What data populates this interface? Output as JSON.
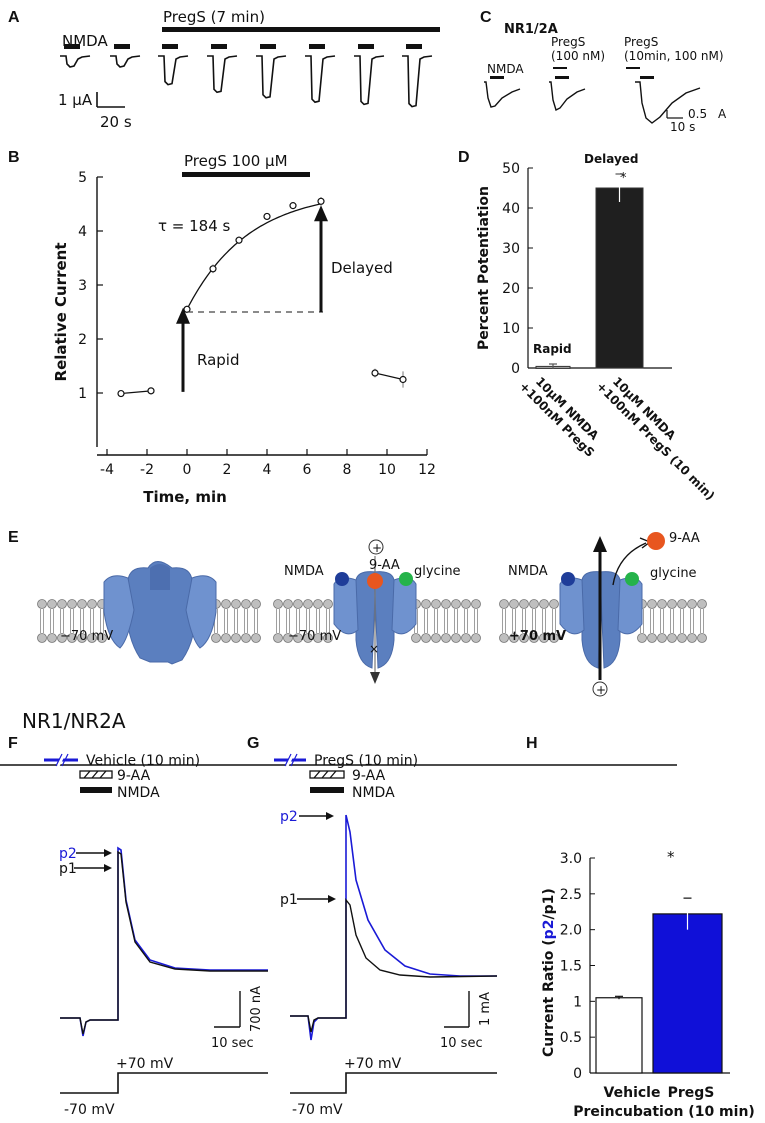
{
  "panel_labels": {
    "A": "A",
    "B": "B",
    "C": "C",
    "D": "D",
    "E": "E",
    "F": "F",
    "G": "G",
    "H": "H"
  },
  "panel_a": {
    "nmda_label": "NMDA",
    "pregs_label": "PregS (7 min)",
    "scale_y": "1 μA",
    "scale_x": "20 s",
    "relative_peaks": [
      1.0,
      1.0,
      2.6,
      3.3,
      3.8,
      4.2,
      4.4,
      4.6
    ]
  },
  "panel_c": {
    "title": "NR1/2A",
    "trace1_label": "NMDA",
    "trace2_label_line1": "PregS",
    "trace2_label_line2": "(100 nM)",
    "trace3_label_line1": "PregS",
    "trace3_label_line2": "(10min, 100 nM)",
    "scale_y": "0.5",
    "scale_unit": "A",
    "scale_x": "10 s"
  },
  "panel_e": {
    "nmda": "NMDA",
    "glycine": "glycine",
    "blocker": "9-AA",
    "v_neg1": "−70 mV",
    "v_neg2": "−70 mV",
    "v_pos": "+70 mV",
    "plus": "+"
  },
  "panel_fg": {
    "row_title": "NR1/NR2A",
    "f_vehicle": "Vehicle (10 min)",
    "g_pregs": "PregS (10 min)",
    "blocker": "9-AA",
    "nmda": "NMDA",
    "p1": "p1",
    "p2": "p2",
    "f_scale_y": "700 nA",
    "g_scale_y": "1 mA",
    "scale_x": "10 sec",
    "v_pos": "+70 mV",
    "v_neg": "-70 mV"
  },
  "colors": {
    "blue": "#1a1ad6",
    "dark": "#111111",
    "receptor": "#5b7fbf",
    "orange": "#e8561f",
    "green": "#25b34a",
    "navy": "#1f3d99"
  },
  "chart_data": [
    {
      "id": "B",
      "type": "scatter",
      "title": "PregS 100 μM",
      "xlabel": "Time, min",
      "ylabel": "Relative Current",
      "xlim": [
        -4.5,
        12
      ],
      "ylim": [
        0,
        5
      ],
      "xticks": [
        -4,
        -2,
        0,
        2,
        4,
        6,
        8,
        10,
        12
      ],
      "yticks": [
        1,
        2,
        3,
        4,
        5
      ],
      "series": [
        {
          "name": "pre",
          "x": [
            -3.3,
            -1.8
          ],
          "y": [
            0.99,
            1.04
          ],
          "err": [
            0.03,
            0.03
          ]
        },
        {
          "name": "pregs",
          "x": [
            0,
            1.3,
            2.6,
            4.0,
            5.3,
            6.7
          ],
          "y": [
            2.55,
            3.3,
            3.83,
            4.27,
            4.47,
            4.55
          ],
          "err": [
            0.07,
            0.08,
            0.07,
            0.05,
            0.04,
            0.08
          ]
        },
        {
          "name": "washout",
          "x": [
            9.4,
            10.8
          ],
          "y": [
            1.37,
            1.25
          ],
          "err": [
            0.08,
            0.15
          ]
        }
      ],
      "fit_label": "τ = 184 s",
      "annotations": {
        "rapid": "Rapid",
        "delayed": "Delayed"
      },
      "baseline_y": 2.5
    },
    {
      "id": "D",
      "type": "bar",
      "ylabel": "Percent Potentiation",
      "ylim": [
        0,
        50
      ],
      "yticks": [
        0,
        10,
        20,
        30,
        40,
        50
      ],
      "categories_line1": [
        "10μM NMDA",
        "10μM NMDA"
      ],
      "categories_line2": [
        "+100nM PregS",
        "+100nM PregS (10 min)"
      ],
      "values": [
        0.4,
        45
      ],
      "errors": [
        0.6,
        3.5
      ],
      "bar_labels": [
        "Rapid",
        "Delayed"
      ],
      "significance": "*"
    },
    {
      "id": "H",
      "type": "bar",
      "ylabel_prefix": "Current Ratio (",
      "ylabel_mid": "p2",
      "ylabel_mid2": "/",
      "ylabel_mid3": "p1",
      "ylabel_suffix": ")",
      "ylim": [
        0,
        3.0
      ],
      "yticks": [
        "0",
        "0.5",
        "1",
        "1.5",
        "2.0",
        "2.5",
        "3.0"
      ],
      "categories": [
        "Vehicle",
        "PregS"
      ],
      "values": [
        1.05,
        2.22
      ],
      "errors": [
        0.02,
        0.22
      ],
      "xlabel": "Preincubation (10 min)",
      "significance": "*"
    }
  ]
}
